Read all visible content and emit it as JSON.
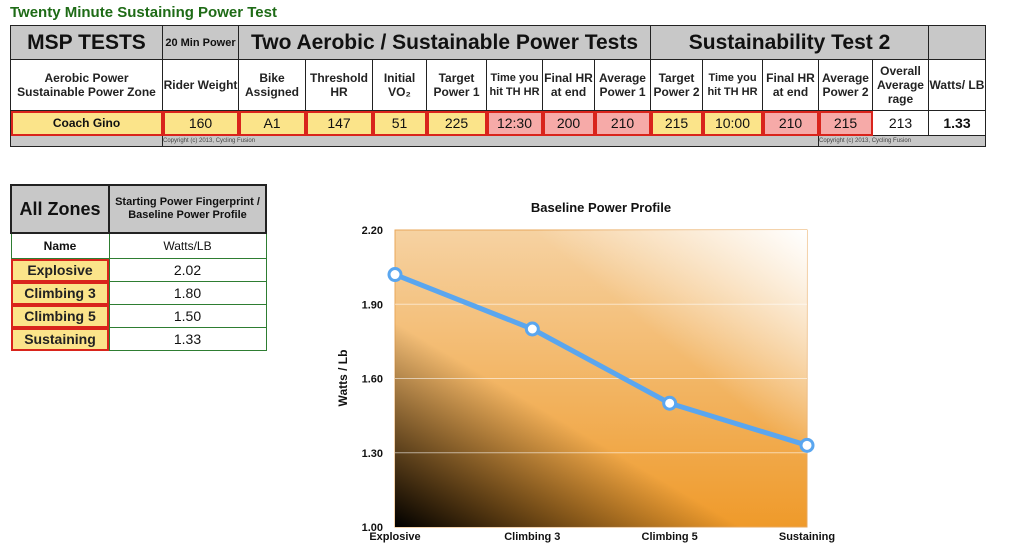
{
  "title": "Twenty Minute Sustaining Power Test",
  "test_table": {
    "header_row1": {
      "msp": "MSP TESTS",
      "twenty_min": "20 Min Power",
      "aerobic": "Two Aerobic / Sustainable Power Tests",
      "sustain": "Sustainability Test 2"
    },
    "header_row2": {
      "zone": "Aerobic Power Sustainable Power Zone",
      "rider_weight": "Rider Weight",
      "bike": "Bike Assigned",
      "threshold": "Threshold HR",
      "initial_vo2": "Initial VO₂",
      "target1": "Target Power 1",
      "time1": "Time you hit TH HR",
      "final1": "Final HR at end",
      "avg1": "Average Power 1",
      "target2": "Target Power 2",
      "time2": "Time you hit TH HR",
      "final2": "Final HR at end",
      "avg2": "Average Power 2",
      "overall": "Overall Average rage",
      "watts_lb": "Watts/ LB"
    },
    "row": {
      "name": "Coach Gino",
      "rider_weight": "160",
      "bike": "A1",
      "threshold": "147",
      "initial_vo2": "51",
      "target1": "225",
      "time1": "12:30",
      "final1": "200",
      "avg1": "210",
      "target2": "215",
      "time2": "10:00",
      "final2": "210",
      "avg2": "215",
      "overall": "213",
      "watts_lb": "1.33"
    },
    "copyright1": "Copyright (c) 2013, Cycling Fusion",
    "copyright2": "Copyright (c) 2013, Cycling Fusion"
  },
  "zones": {
    "title": "All Zones",
    "subtitle": "Starting Power Fingerprint / Baseline Power Profile",
    "col_name": "Name",
    "col_value": "Watts/LB",
    "rows": [
      {
        "name": "Explosive",
        "value": "2.02"
      },
      {
        "name": "Climbing 3",
        "value": "1.80"
      },
      {
        "name": "Climbing 5",
        "value": "1.50"
      },
      {
        "name": "Sustaining",
        "value": "1.33"
      }
    ]
  },
  "colors": {
    "title_green": "#1e6b16",
    "yellow": "#fbe48a",
    "pink": "#f6aaa8",
    "line_blue": "#5aa6ef",
    "red_border": "#d9241c",
    "orange": "#ef9a2a"
  },
  "chart_data": {
    "type": "line",
    "title": "Baseline Power Profile",
    "xlabel": "",
    "ylabel": "Watts / Lb",
    "categories": [
      "Explosive",
      "Climbing 3",
      "Climbing 5",
      "Sustaining"
    ],
    "series": [
      {
        "values": [
          2.02,
          1.8,
          1.5,
          1.33
        ]
      }
    ],
    "ylim": [
      1.0,
      2.2
    ],
    "yticks": [
      "1.00",
      "1.30",
      "1.60",
      "1.90",
      "2.20"
    ],
    "grid": true,
    "legend": "none"
  }
}
